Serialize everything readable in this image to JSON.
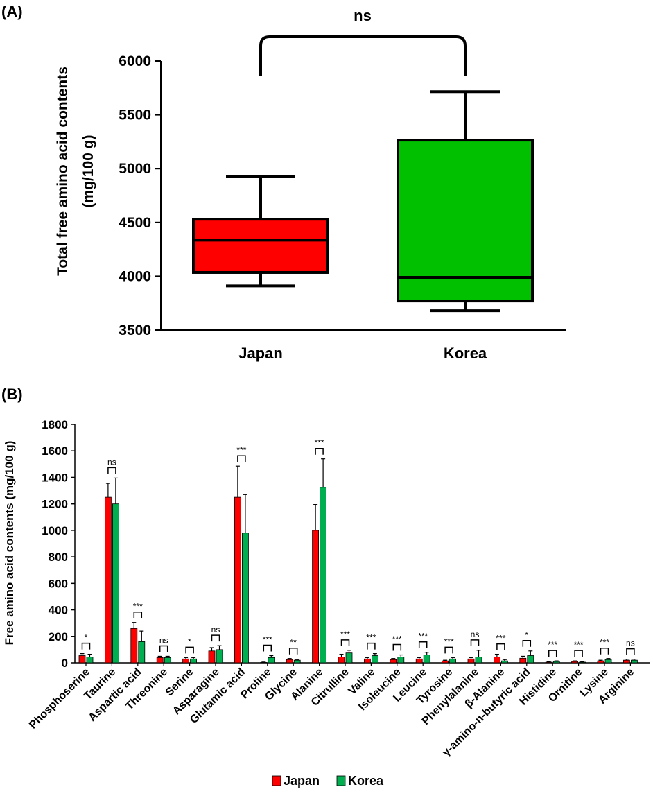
{
  "panel_a_label": "(A)",
  "panel_b_label": "(B)",
  "chart_data": [
    {
      "type": "boxplot",
      "panel": "A",
      "ylabel_line1": "Total  free amino acid contents",
      "ylabel_line2": "(mg/100 g)",
      "ylim": [
        3500,
        6000
      ],
      "yticks": [
        3500,
        4000,
        4500,
        5000,
        5500,
        6000
      ],
      "ytick_labels": [
        "3500",
        "4000",
        "4500",
        "5000",
        "5500",
        "6000"
      ],
      "significance": "ns",
      "groups": [
        {
          "name": "Japan",
          "color": "#ff0000",
          "whisker_low": 3910,
          "q1": 4035,
          "median": 4335,
          "q3": 4530,
          "whisker_high": 4925
        },
        {
          "name": "Korea",
          "color": "#00c000",
          "whisker_low": 3680,
          "q1": 3770,
          "median": 3990,
          "q3": 5265,
          "whisker_high": 5715
        }
      ]
    },
    {
      "type": "bar",
      "panel": "B",
      "ylabel": "Free amino acid contents (mg/100 g)",
      "ylim": [
        0,
        1800
      ],
      "yticks": [
        0,
        200,
        400,
        600,
        800,
        1000,
        1200,
        1400,
        1600,
        1800
      ],
      "ytick_labels": [
        "0",
        "200",
        "400",
        "600",
        "800",
        "1000",
        "1200",
        "1400",
        "1600",
        "1800"
      ],
      "categories": [
        "Phosphoserine",
        "Taurine",
        "Aspartic acid",
        "Threonine",
        "Serine",
        "Asparagine",
        "Glutamic acid",
        "Proline",
        "Glycine",
        "Alanine",
        "Citrulline",
        "Valine",
        "Isoleucine",
        "Leucine",
        "Tyrosine",
        "Phenylalanine",
        "β-Alanine",
        "γ-amino-n-butyric acid",
        "Histidine",
        "Ornitine",
        "Lysine",
        "Arginine"
      ],
      "significance": [
        "*",
        "ns",
        "***",
        "ns",
        "*",
        "ns",
        "***",
        "***",
        "**",
        "***",
        "***",
        "***",
        "***",
        "***",
        "***",
        "ns",
        "***",
        "*",
        "***",
        "***",
        "***",
        "ns"
      ],
      "series": [
        {
          "name": "Japan",
          "color": "#ff0000",
          "values": [
            55,
            1250,
            260,
            40,
            30,
            90,
            1250,
            3,
            25,
            1000,
            45,
            30,
            25,
            30,
            15,
            30,
            45,
            35,
            5,
            10,
            15,
            20
          ],
          "errors": [
            15,
            105,
            45,
            10,
            10,
            25,
            235,
            3,
            8,
            195,
            20,
            10,
            8,
            10,
            5,
            10,
            20,
            15,
            3,
            5,
            5,
            8
          ]
        },
        {
          "name": "Korea",
          "color": "#00b050",
          "values": [
            45,
            1200,
            160,
            40,
            30,
            100,
            980,
            40,
            20,
            1325,
            75,
            55,
            45,
            60,
            30,
            45,
            15,
            55,
            10,
            5,
            25,
            20
          ],
          "errors": [
            20,
            195,
            80,
            10,
            10,
            30,
            290,
            15,
            5,
            215,
            20,
            15,
            15,
            20,
            10,
            50,
            10,
            35,
            5,
            3,
            8,
            8
          ]
        }
      ],
      "legend": [
        "Japan",
        "Korea"
      ]
    }
  ]
}
